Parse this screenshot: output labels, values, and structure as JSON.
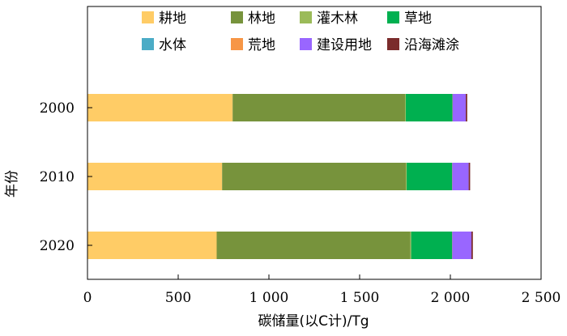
{
  "chart_data": {
    "type": "bar",
    "orientation": "horizontal",
    "stacked": true,
    "title": "",
    "xlabel": "碳储量(以C计)/Tg",
    "ylabel": "年份",
    "xlim": [
      0,
      2500
    ],
    "x_ticks": [
      0,
      500,
      1000,
      1500,
      2000,
      2500
    ],
    "x_tick_labels": [
      "0",
      "500",
      "1 000",
      "1 500",
      "2 000",
      "2 500"
    ],
    "categories": [
      "2000",
      "2010",
      "2020"
    ],
    "legend_position": "top",
    "grid": false,
    "series": [
      {
        "name": "耕地",
        "color": "#FFCC66",
        "values": [
          800,
          742,
          712
        ]
      },
      {
        "name": "林地",
        "color": "#77933C",
        "values": [
          950,
          1013,
          1068
        ]
      },
      {
        "name": "灌木林",
        "color": "#9BBB59",
        "values": [
          4,
          4,
          4
        ]
      },
      {
        "name": "草地",
        "color": "#00B050",
        "values": [
          257,
          250,
          225
        ]
      },
      {
        "name": "水体",
        "color": "#4BACC6",
        "values": [
          1,
          1,
          1
        ]
      },
      {
        "name": "荒地",
        "color": "#F79646",
        "values": [
          1,
          1,
          1
        ]
      },
      {
        "name": "建设用地",
        "color": "#9966FF",
        "values": [
          72,
          90,
          105
        ]
      },
      {
        "name": "沿海滩涂",
        "color": "#7B2C2C",
        "values": [
          8,
          8,
          8
        ]
      }
    ]
  }
}
